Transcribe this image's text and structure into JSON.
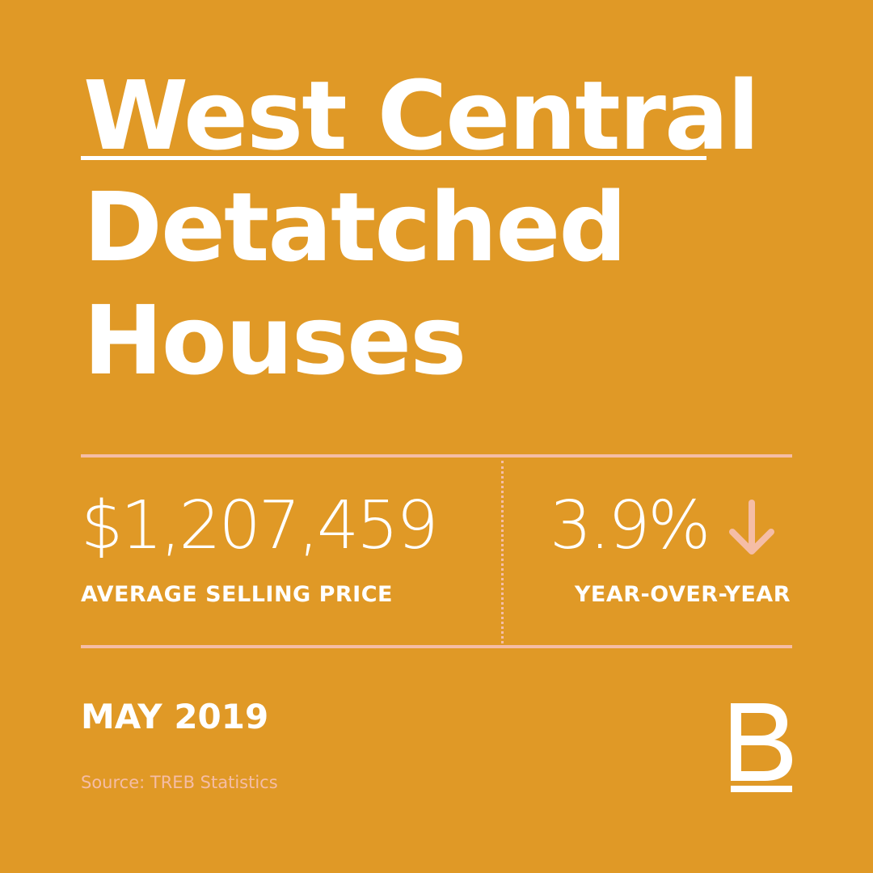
{
  "title": {
    "line1": "West Central",
    "line2": "Detatched",
    "line3": "Houses"
  },
  "stats": {
    "price_value": "$1,207,459",
    "price_label": "AVERAGE SELLING PRICE",
    "change_value": "3.9%",
    "change_direction": "down",
    "change_label": "YEAR-OVER-YEAR"
  },
  "date": "MAY 2019",
  "source": "Source: TREB Statistics",
  "logo": {
    "icon": "brand-b-logo",
    "letter": "B"
  },
  "colors": {
    "background": "#E09926",
    "accent": "#F5BDA6",
    "text": "#FFFFFF"
  }
}
